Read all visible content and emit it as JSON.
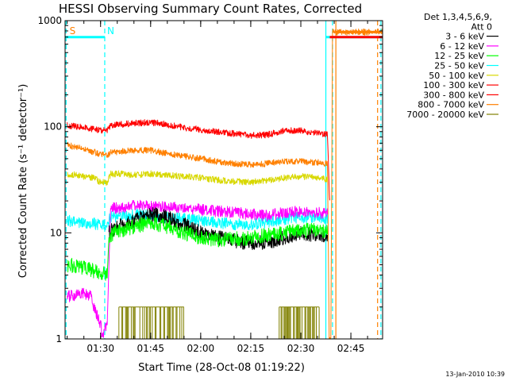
{
  "chart_data": {
    "type": "line",
    "title": "HESSI Observing Summary Count Rates, Corrected",
    "xlabel": "Start Time (28-Oct-08 01:19:22)",
    "ylabel": "Corrected Count Rate (s⁻¹ detector⁻¹)",
    "y_scale": "log",
    "ylim": [
      1,
      1000
    ],
    "xlim": [
      "01:19:22",
      "02:54:30"
    ],
    "x_tick_labels": [
      "01:30",
      "01:45",
      "02:00",
      "02:15",
      "02:30",
      "02:45"
    ],
    "y_tick_labels": [
      "1",
      "10",
      "100",
      "1000"
    ],
    "grid": false,
    "legend_title_lines": [
      "Det 1,3,4,5,6,9,",
      "Att 0"
    ],
    "legend_position": "right",
    "footer": "13-Jan-2010 10:39",
    "series": [
      {
        "name": "3 - 6 keV",
        "color": "#000000",
        "x": [
          "01:32:30",
          "01:34",
          "01:40",
          "01:45",
          "01:50",
          "01:55",
          "02:00",
          "02:05",
          "02:10",
          "02:15",
          "02:20",
          "02:25",
          "02:30",
          "02:35",
          "02:38"
        ],
        "y": [
          10,
          11,
          13,
          15,
          14,
          12,
          10,
          9,
          8.5,
          8,
          8.2,
          9,
          10,
          9.5,
          9
        ]
      },
      {
        "name": "6 - 12 keV",
        "color": "#ff00ff",
        "x": [
          "01:20",
          "01:24",
          "01:27",
          "01:28",
          "01:30",
          "01:30:30",
          "01:31",
          "01:32",
          "01:33",
          "01:36",
          "01:40",
          "01:45",
          "01:50",
          "01:55",
          "02:00",
          "02:05",
          "02:10",
          "02:15",
          "02:20",
          "02:25",
          "02:30",
          "02:35",
          "02:38"
        ],
        "y": [
          2.5,
          2.7,
          2.6,
          2,
          1.4,
          1,
          1.1,
          1.4,
          17,
          17,
          18,
          18,
          17.5,
          17,
          16.5,
          16,
          15.5,
          15,
          14.5,
          15.5,
          16,
          15.5,
          15
        ]
      },
      {
        "name": "12 - 25 keV",
        "color": "#00ff00",
        "x": [
          "01:20",
          "01:24",
          "01:27",
          "01:30",
          "01:32",
          "01:32:30",
          "01:34",
          "01:40",
          "01:45",
          "01:50",
          "01:55",
          "02:00",
          "02:05",
          "02:10",
          "02:15",
          "02:20",
          "02:25",
          "02:30",
          "02:35",
          "02:38"
        ],
        "y": [
          5,
          4.8,
          4.5,
          4.2,
          4,
          9,
          10,
          11.5,
          12.5,
          11.5,
          10,
          9,
          8.5,
          8.7,
          9,
          9.5,
          10,
          10.5,
          10.5,
          10
        ]
      },
      {
        "name": "25 - 50 keV",
        "color": "#00ffff",
        "x": [
          "01:20",
          "01:25",
          "01:30",
          "01:32",
          "01:33",
          "01:40",
          "01:45",
          "01:50",
          "01:55",
          "02:00",
          "02:05",
          "02:10",
          "02:15",
          "02:20",
          "02:25",
          "02:30",
          "02:35",
          "02:38"
        ],
        "y": [
          13,
          12.5,
          12,
          12,
          14,
          15,
          14.5,
          14,
          13.5,
          13,
          12.5,
          12,
          12,
          12.5,
          13.5,
          14,
          14,
          13.5
        ]
      },
      {
        "name": "50 - 100 keV",
        "color": "#d8d800",
        "x": [
          "01:20",
          "01:25",
          "01:28",
          "01:30",
          "01:32",
          "01:33",
          "01:36",
          "01:40",
          "01:45",
          "01:50",
          "01:55",
          "02:00",
          "02:05",
          "02:10",
          "02:15",
          "02:20",
          "02:25",
          "02:30",
          "02:35",
          "02:38"
        ],
        "y": [
          36,
          34,
          33,
          30,
          30,
          36,
          36,
          35,
          36,
          35,
          34,
          33,
          31.5,
          30.5,
          30,
          31,
          33,
          34,
          33,
          32
        ]
      },
      {
        "name": "100 - 300 keV",
        "color": "#ff0000",
        "x": [
          "01:20",
          "01:25",
          "01:30",
          "01:32",
          "01:33",
          "01:36",
          "01:40",
          "01:45",
          "01:50",
          "01:55",
          "02:00",
          "02:05",
          "02:10",
          "02:15",
          "02:20",
          "02:25",
          "02:30",
          "02:35",
          "02:38",
          "02:38:30",
          "02:38:40"
        ],
        "y": [
          103,
          98,
          93,
          92,
          102,
          105,
          108,
          110,
          105,
          98,
          94,
          90,
          86,
          83,
          84,
          92,
          92,
          87,
          84,
          26,
          20
        ]
      },
      {
        "name": "300 - 800 keV",
        "color": "#ff0000",
        "x": [
          "02:38:40",
          "02:54:30"
        ],
        "y": [
          700,
          700
        ]
      },
      {
        "name": "800 - 7000 keV",
        "color": "#ff8000",
        "x": [
          "01:20",
          "01:25",
          "01:30",
          "01:32",
          "01:33",
          "01:40",
          "01:45",
          "01:50",
          "01:55",
          "02:00",
          "02:05",
          "02:10",
          "02:15",
          "02:20",
          "02:25",
          "02:30",
          "02:35",
          "02:38",
          "02:38:30",
          "02:39",
          "02:39:30",
          "02:40:30",
          "02:54:30"
        ],
        "y": [
          67,
          62,
          55,
          54,
          57,
          60,
          60,
          56,
          53,
          50,
          47,
          45,
          44,
          45,
          47,
          47,
          46,
          45,
          1,
          1,
          780,
          780,
          780
        ]
      },
      {
        "name": "7000 - 20000 keV",
        "color": "#808000",
        "bursts": [
          [
            "01:35:30",
            "01:55:00"
          ],
          [
            "02:23:30",
            "02:35:30"
          ]
        ],
        "burst_level": 2
      }
    ],
    "annotations": [
      {
        "text": "S",
        "color": "#ff8000",
        "x": "01:20"
      },
      {
        "text": "N",
        "color": "#00ffff",
        "x": "01:31:15"
      }
    ],
    "status_bars": [
      {
        "color": "#00ffff",
        "from": "01:19:22",
        "to": "01:31:15",
        "level": 700
      },
      {
        "color": "#00ffff",
        "from": "02:37:30",
        "to": "02:54:30",
        "level": 700
      }
    ],
    "vertical_markers": [
      {
        "color": "#00ffff",
        "x": "01:19:40",
        "style": "dashed"
      },
      {
        "color": "#00ffff",
        "x": "01:31:15",
        "style": "dashed"
      },
      {
        "color": "#00ffff",
        "x": "02:37:30",
        "style": "solid"
      },
      {
        "color": "#00ffff",
        "x": "02:39:30",
        "style": "dashed"
      },
      {
        "color": "#ff8000",
        "x": "02:40:30",
        "style": "solid"
      },
      {
        "color": "#ff8000",
        "x": "02:53:00",
        "style": "dashed"
      },
      {
        "color": "#00ffff",
        "x": "02:54:00",
        "style": "dashed"
      }
    ]
  }
}
